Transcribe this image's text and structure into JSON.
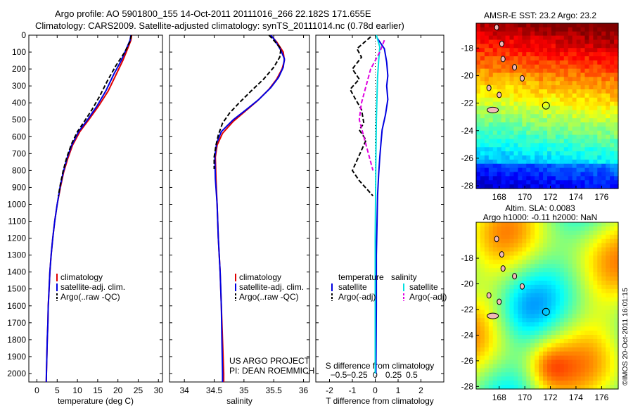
{
  "header": {
    "line1": "Argo profile: AO 5901800_155 14-Oct-2011 20111016_266 22.182S 171.655E",
    "line2": "Climatology: CARS2009. Satellite-adjusted climatology: synTS_20111014.nc (0.78d earlier)"
  },
  "project": {
    "line1": "US ARGO PROJECT",
    "line2": "PI: DEAN ROEMMICH"
  },
  "stamp": "©IMOS 20-Oct-2011 16:01:15",
  "colors": {
    "climatology": "#e00000",
    "satellite": "#0000e0",
    "argo": "#000000",
    "sal_sat": "#00e0e0",
    "sal_argo": "#e000e0"
  },
  "chart_data": [
    {
      "type": "line",
      "xlabel": "temperature (deg C)",
      "xlim": [
        -2,
        31
      ],
      "xticks": [
        0,
        5,
        10,
        15,
        20,
        25,
        30
      ],
      "ylim": [
        2050,
        0
      ],
      "yticks": [
        0,
        100,
        200,
        300,
        400,
        500,
        600,
        700,
        800,
        900,
        1000,
        1100,
        1200,
        1300,
        1400,
        1500,
        1600,
        1700,
        1800,
        1900,
        2000
      ],
      "legend": [
        "climatology",
        "satellite-adj. clim.",
        "Argo(..raw -QC)"
      ],
      "series": [
        {
          "name": "climatology",
          "color": "#e00000",
          "dash": "",
          "points": [
            [
              23.4,
              0
            ],
            [
              23.2,
              30
            ],
            [
              22.4,
              80
            ],
            [
              21.2,
              150
            ],
            [
              19.6,
              230
            ],
            [
              17.6,
              330
            ],
            [
              15.2,
              420
            ],
            [
              12.8,
              500
            ],
            [
              10.6,
              570
            ],
            [
              8.8,
              650
            ],
            [
              7.6,
              730
            ],
            [
              6.6,
              810
            ],
            [
              5.8,
              900
            ],
            [
              5.0,
              1000
            ],
            [
              4.4,
              1100
            ],
            [
              3.9,
              1200
            ],
            [
              3.5,
              1300
            ],
            [
              3.2,
              1400
            ],
            [
              3.0,
              1500
            ],
            [
              2.8,
              1600
            ],
            [
              2.7,
              1700
            ],
            [
              2.55,
              1800
            ],
            [
              2.45,
              1900
            ],
            [
              2.35,
              2000
            ],
            [
              2.3,
              2050
            ]
          ]
        },
        {
          "name": "satellite-adj. clim.",
          "color": "#0000e0",
          "dash": "",
          "points": [
            [
              23.2,
              0
            ],
            [
              23.0,
              30
            ],
            [
              22.1,
              80
            ],
            [
              20.8,
              150
            ],
            [
              19.0,
              230
            ],
            [
              17.0,
              330
            ],
            [
              14.8,
              420
            ],
            [
              12.5,
              500
            ],
            [
              10.3,
              570
            ],
            [
              8.6,
              650
            ],
            [
              7.4,
              730
            ],
            [
              6.5,
              810
            ],
            [
              5.7,
              900
            ],
            [
              5.0,
              1000
            ],
            [
              4.4,
              1100
            ],
            [
              3.9,
              1200
            ],
            [
              3.5,
              1300
            ],
            [
              3.2,
              1400
            ],
            [
              3.0,
              1500
            ],
            [
              2.8,
              1600
            ],
            [
              2.7,
              1700
            ],
            [
              2.55,
              1800
            ],
            [
              2.45,
              1900
            ],
            [
              2.35,
              2000
            ],
            [
              2.3,
              2050
            ]
          ]
        },
        {
          "name": "Argo(..raw -QC)",
          "color": "#000000",
          "dash": "6,3",
          "points": [
            [
              23.3,
              0
            ],
            [
              22.9,
              40
            ],
            [
              21.7,
              100
            ],
            [
              19.5,
              180
            ],
            [
              17.4,
              270
            ],
            [
              15.5,
              360
            ],
            [
              13.6,
              440
            ],
            [
              11.7,
              510
            ],
            [
              10.0,
              570
            ],
            [
              8.6,
              640
            ],
            [
              7.4,
              720
            ],
            [
              6.5,
              800
            ],
            [
              5.8,
              880
            ],
            [
              5.3,
              950
            ]
          ]
        }
      ]
    },
    {
      "type": "line",
      "xlabel": "salinity",
      "xlim": [
        33.75,
        36.1
      ],
      "xticks": [
        34,
        34.5,
        35,
        35.5,
        36
      ],
      "ylim": [
        2050,
        0
      ],
      "legend": [
        "climatology",
        "satellite-adj. clim.",
        "Argo(..raw -QC)"
      ],
      "series": [
        {
          "name": "climatology",
          "color": "#e00000",
          "dash": "",
          "points": [
            [
              35.45,
              0
            ],
            [
              35.55,
              40
            ],
            [
              35.66,
              100
            ],
            [
              35.68,
              150
            ],
            [
              35.64,
              200
            ],
            [
              35.55,
              260
            ],
            [
              35.42,
              320
            ],
            [
              35.22,
              390
            ],
            [
              35.02,
              450
            ],
            [
              34.82,
              510
            ],
            [
              34.64,
              580
            ],
            [
              34.55,
              650
            ],
            [
              34.52,
              720
            ],
            [
              34.53,
              850
            ],
            [
              34.55,
              1000
            ],
            [
              34.57,
              1200
            ],
            [
              34.6,
              1400
            ],
            [
              34.62,
              1600
            ],
            [
              34.64,
              1800
            ],
            [
              34.66,
              2000
            ],
            [
              34.66,
              2050
            ]
          ]
        },
        {
          "name": "satellite-adj. clim.",
          "color": "#0000e0",
          "dash": "",
          "points": [
            [
              35.45,
              0
            ],
            [
              35.52,
              30
            ],
            [
              35.62,
              90
            ],
            [
              35.68,
              140
            ],
            [
              35.66,
              190
            ],
            [
              35.58,
              250
            ],
            [
              35.45,
              310
            ],
            [
              35.25,
              380
            ],
            [
              35.04,
              440
            ],
            [
              34.82,
              500
            ],
            [
              34.62,
              570
            ],
            [
              34.54,
              640
            ],
            [
              34.51,
              720
            ],
            [
              34.52,
              850
            ],
            [
              34.55,
              1000
            ],
            [
              34.57,
              1200
            ],
            [
              34.6,
              1400
            ],
            [
              34.62,
              1600
            ],
            [
              34.63,
              1800
            ],
            [
              34.64,
              2000
            ],
            [
              34.64,
              2050
            ]
          ]
        },
        {
          "name": "Argo(..raw -QC)",
          "color": "#000000",
          "dash": "6,3",
          "points": [
            [
              35.42,
              0
            ],
            [
              35.5,
              30
            ],
            [
              35.62,
              80
            ],
            [
              35.6,
              130
            ],
            [
              35.5,
              190
            ],
            [
              35.33,
              260
            ],
            [
              35.12,
              330
            ],
            [
              34.92,
              400
            ],
            [
              34.76,
              460
            ],
            [
              34.64,
              520
            ],
            [
              34.57,
              590
            ],
            [
              34.53,
              650
            ],
            [
              34.5,
              720
            ],
            [
              34.5,
              790
            ]
          ]
        }
      ]
    },
    {
      "type": "line",
      "xlabel": "T difference from climatology",
      "xlabel_top": "S difference from climatology",
      "xlim": [
        -2.6,
        3.0
      ],
      "xticks": [
        -2,
        -1,
        0,
        1,
        2
      ],
      "xticks_top": [
        {
          "v": -1.6,
          "label": "−0.5"
        },
        {
          "v": -0.8,
          "label": "−0.25"
        },
        {
          "v": 0,
          "label": "0"
        },
        {
          "v": 0.8,
          "label": "0.25"
        },
        {
          "v": 1.6,
          "label": "0.5"
        }
      ],
      "ylim": [
        2050,
        0
      ],
      "legend_left_title": "temperature",
      "legend_left": [
        "satellite",
        "Argo(-adj)"
      ],
      "legend_right_title": "salinity",
      "legend_right": [
        "satellite",
        "Argo(-adj)"
      ],
      "series": [
        {
          "name": "temperature satellite",
          "color": "#0000e0",
          "dash": "",
          "points": [
            [
              0.1,
              20
            ],
            [
              0.4,
              80
            ],
            [
              0.5,
              160
            ],
            [
              0.55,
              240
            ],
            [
              0.5,
              300
            ],
            [
              0.55,
              380
            ],
            [
              0.45,
              470
            ],
            [
              0.3,
              560
            ],
            [
              0.25,
              640
            ],
            [
              0.2,
              720
            ],
            [
              0.15,
              820
            ],
            [
              0.1,
              950
            ],
            [
              0.08,
              1100
            ],
            [
              0.05,
              1300
            ],
            [
              0.05,
              1600
            ],
            [
              0.03,
              2000
            ]
          ]
        },
        {
          "name": "temperature Argo(-adj)",
          "color": "#000000",
          "dash": "6,3",
          "points": [
            [
              -0.2,
              10
            ],
            [
              -0.8,
              80
            ],
            [
              -0.6,
              130
            ],
            [
              -1.0,
              200
            ],
            [
              -0.7,
              260
            ],
            [
              -1.1,
              320
            ],
            [
              -0.9,
              370
            ],
            [
              -0.6,
              440
            ],
            [
              -0.5,
              520
            ],
            [
              -0.7,
              560
            ],
            [
              -0.4,
              620
            ],
            [
              -0.6,
              680
            ],
            [
              -0.8,
              740
            ],
            [
              -1.0,
              800
            ],
            [
              -0.7,
              860
            ],
            [
              -0.3,
              920
            ],
            [
              -0.1,
              950
            ]
          ]
        },
        {
          "name": "salinity satellite",
          "color": "#00e0e0",
          "dash": "",
          "points": [
            [
              0.05,
              0
            ],
            [
              0.2,
              70
            ],
            [
              0.15,
              150
            ],
            [
              0.1,
              250
            ],
            [
              0.08,
              350
            ],
            [
              0.05,
              500
            ],
            [
              0.03,
              700
            ],
            [
              0.02,
              900
            ],
            [
              0.0,
              1200
            ],
            [
              0.0,
              1600
            ],
            [
              0.0,
              2000
            ]
          ]
        },
        {
          "name": "salinity Argo(-adj)",
          "color": "#e000e0",
          "dash": "6,3",
          "points": [
            [
              0.4,
              30
            ],
            [
              0.2,
              100
            ],
            [
              -0.2,
              200
            ],
            [
              -0.4,
              300
            ],
            [
              -0.6,
              400
            ],
            [
              -0.7,
              500
            ],
            [
              -0.5,
              600
            ],
            [
              -0.3,
              700
            ],
            [
              -0.1,
              800
            ]
          ]
        }
      ]
    },
    {
      "type": "heatmap",
      "title": "AMSR-E SST: 23.2 Argo: 23.2",
      "xticks": [
        168,
        170,
        172,
        174,
        176
      ],
      "yticks": [
        -18,
        -20,
        -22,
        -24,
        -26,
        -28
      ],
      "argo_position": [
        171.655,
        -22.182
      ]
    },
    {
      "type": "heatmap",
      "title_line1": "Altim. SLA: 0.0083",
      "title_line2": "Argo h1000: -0.11 h2000: NaN",
      "xticks": [
        168,
        170,
        172,
        174,
        176
      ],
      "yticks": [
        -18,
        -20,
        -22,
        -24,
        -26,
        -28
      ],
      "argo_position": [
        171.655,
        -22.182
      ]
    }
  ]
}
